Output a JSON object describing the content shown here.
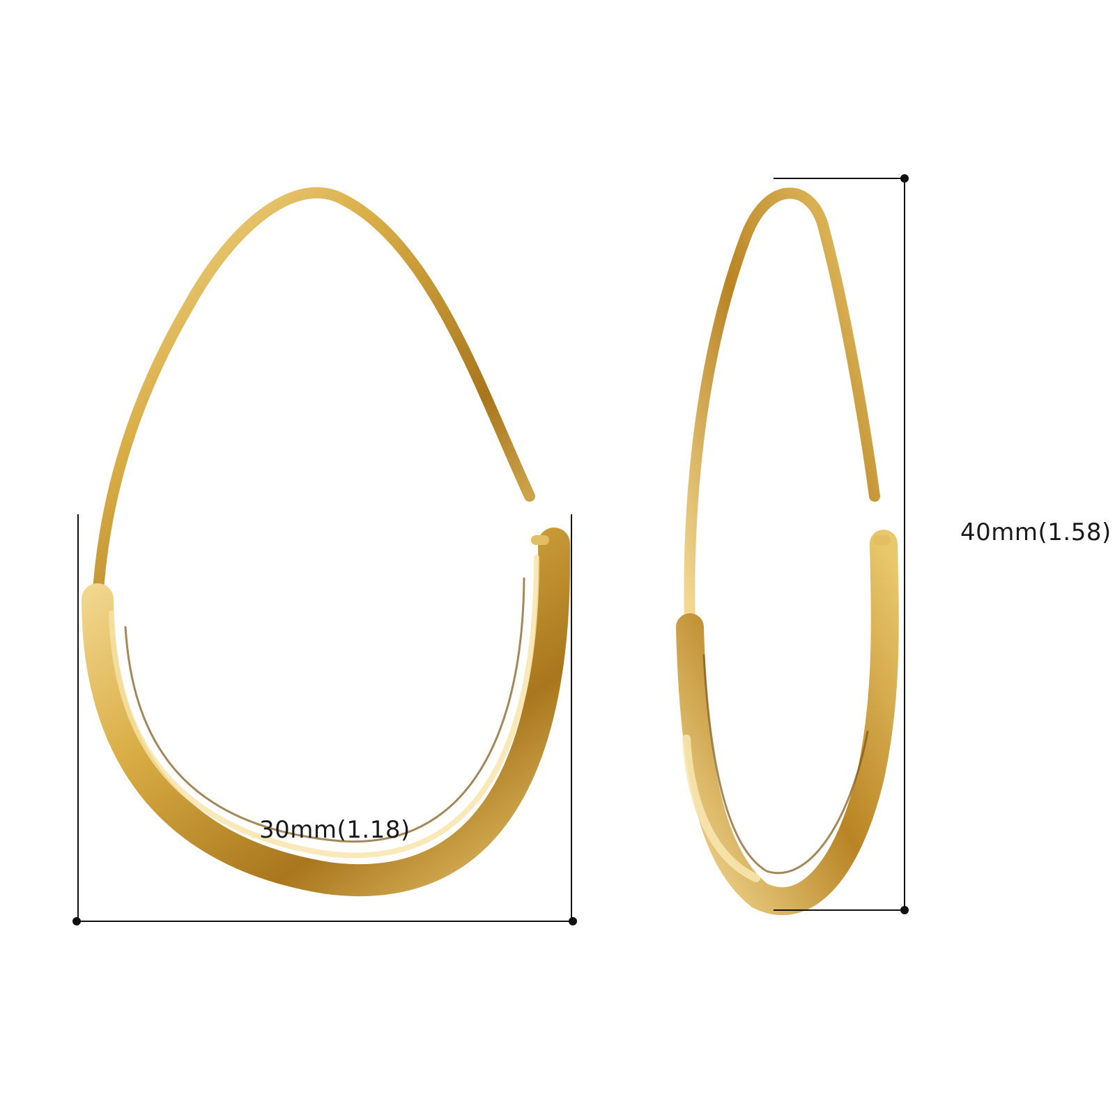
{
  "dimensions": {
    "width_label": "30mm(1.18)",
    "height_label": "40mm(1.58)"
  },
  "colors": {
    "gold_light": "#f6df9c",
    "gold_mid": "#d9ad45",
    "gold_dark": "#a9761d",
    "gold_shadow": "#7c5512",
    "dimension_line": "#111111"
  }
}
